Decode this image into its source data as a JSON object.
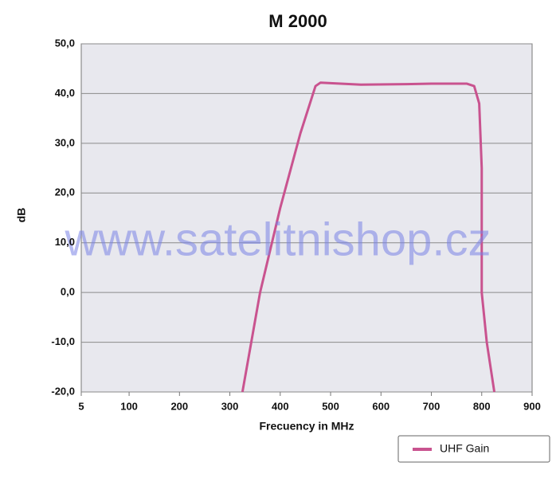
{
  "chart_data": {
    "type": "line",
    "title": "M 2000",
    "x_label": "Frecuency in MHz",
    "y_label": "dB",
    "watermark": "www.satelitnishop.cz",
    "x": [
      325,
      360,
      400,
      440,
      470,
      480,
      500,
      560,
      650,
      700,
      770,
      785,
      795,
      800,
      800,
      800,
      810,
      825
    ],
    "series": [
      {
        "name": "UHF Gain",
        "color": "#c9538f",
        "values": [
          -20,
          0,
          17,
          32,
          41.5,
          42.2,
          42.1,
          41.8,
          41.9,
          42,
          42,
          41.5,
          38,
          25,
          10,
          0,
          -10,
          -20
        ]
      }
    ],
    "xlim": [
      5,
      900
    ],
    "xticks": [
      5,
      100,
      200,
      300,
      400,
      500,
      600,
      700,
      800,
      900
    ],
    "ylim": [
      -20,
      50
    ],
    "yticks": [
      {
        "value": -20,
        "label": "-20,0"
      },
      {
        "value": -10,
        "label": "-10,0"
      },
      {
        "value": 0,
        "label": "0,0"
      },
      {
        "value": 10,
        "label": "10,0"
      },
      {
        "value": 20,
        "label": "20,0"
      },
      {
        "value": 30,
        "label": "30,0"
      },
      {
        "value": 40,
        "label": "40,0"
      },
      {
        "value": 50,
        "label": "50,0"
      }
    ],
    "grid": true,
    "legend": "bottom-right"
  }
}
